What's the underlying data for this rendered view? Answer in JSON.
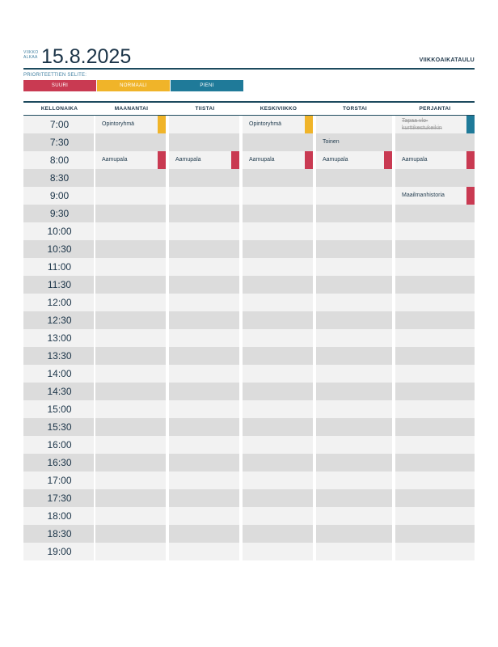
{
  "header": {
    "week_label": "VIIKKO ALKAA",
    "date": "15.8.2025",
    "title": "VIIKKOAIKATAULU"
  },
  "legend": {
    "title": "PRIORITEETTIEN SELITE:",
    "items": [
      {
        "label": "SUURI",
        "color": "#c93a52"
      },
      {
        "label": "NORMAALI",
        "color": "#f0b429"
      },
      {
        "label": "PIENI",
        "color": "#1f7a99"
      }
    ]
  },
  "columns": [
    "KELLONAIKA",
    "MAANANTAI",
    "TIISTAI",
    "KESKIVIIKKO",
    "TORSTAI",
    "PERJANTAI"
  ],
  "times": [
    "7:00",
    "7:30",
    "8:00",
    "8:30",
    "9:00",
    "9:30",
    "10:00",
    "10:30",
    "11:00",
    "11:30",
    "12:00",
    "12:30",
    "13:00",
    "13:30",
    "14:00",
    "14:30",
    "15:00",
    "15:30",
    "16:00",
    "16:30",
    "17:00",
    "17:30",
    "18:00",
    "18:30",
    "19:00"
  ],
  "events": [
    {
      "row": 0,
      "col": 1,
      "text": "Opintoryhmä",
      "priority": "normal"
    },
    {
      "row": 0,
      "col": 3,
      "text": "Opintoryhmä",
      "priority": "normal"
    },
    {
      "row": 0,
      "col": 5,
      "text": "Tapaa vlo-kurttikestukeikin",
      "priority": "low",
      "done": true
    },
    {
      "row": 1,
      "col": 4,
      "text": "Toinen",
      "priority": "none"
    },
    {
      "row": 2,
      "col": 1,
      "text": "Aamupala",
      "priority": "high"
    },
    {
      "row": 2,
      "col": 2,
      "text": "Aamupala",
      "priority": "high"
    },
    {
      "row": 2,
      "col": 3,
      "text": "Aamupala",
      "priority": "high"
    },
    {
      "row": 2,
      "col": 4,
      "text": "Aamupala",
      "priority": "high"
    },
    {
      "row": 2,
      "col": 5,
      "text": "Aamupala",
      "priority": "high"
    },
    {
      "row": 4,
      "col": 5,
      "text": "Maailmanhistoria",
      "priority": "high"
    }
  ],
  "colors": {
    "high": "#c93a52",
    "normal": "#f0b429",
    "low": "#1f7a99",
    "row_light": "#f2f2f2",
    "row_dark": "#dcdcdc",
    "header_line": "#1d4a5e"
  }
}
